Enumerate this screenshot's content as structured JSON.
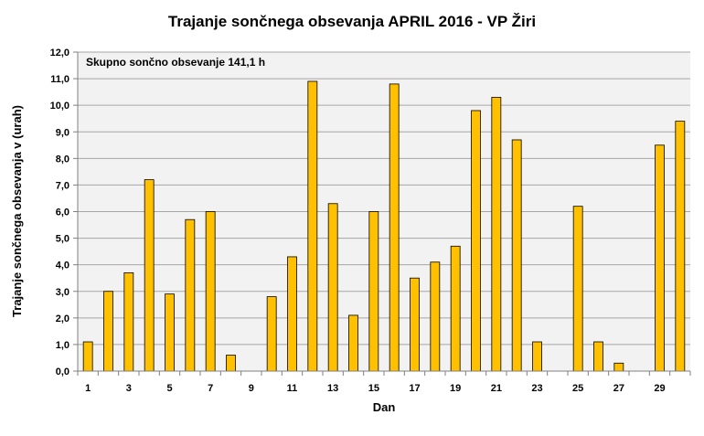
{
  "chart_data": {
    "type": "bar",
    "title": "Trajanje  sončnega obsevanja  APRIL 2016 - VP Žiri",
    "xlabel": "Dan",
    "ylabel": "Trajanje  sončnega obsevanja  v (urah)",
    "annotation": "Skupno sončno obsevanje  141,1 h",
    "ylim": [
      0,
      12
    ],
    "y_ticks": [
      "0,0",
      "1,0",
      "2,0",
      "3,0",
      "4,0",
      "5,0",
      "6,0",
      "7,0",
      "8,0",
      "9,0",
      "10,0",
      "11,0",
      "12,0"
    ],
    "x_tick_labels": [
      "1",
      "3",
      "5",
      "7",
      "9",
      "11",
      "13",
      "15",
      "17",
      "19",
      "21",
      "23",
      "25",
      "27",
      "29"
    ],
    "categories": [
      1,
      2,
      3,
      4,
      5,
      6,
      7,
      8,
      9,
      10,
      11,
      12,
      13,
      14,
      15,
      16,
      17,
      18,
      19,
      20,
      21,
      22,
      23,
      24,
      25,
      26,
      27,
      28,
      29,
      30
    ],
    "values": [
      1.1,
      3.0,
      3.7,
      7.2,
      2.9,
      5.7,
      6.0,
      0.6,
      0.0,
      2.8,
      4.3,
      10.9,
      6.3,
      2.1,
      6.0,
      10.8,
      3.5,
      4.1,
      4.7,
      9.8,
      10.3,
      8.7,
      1.1,
      0.0,
      6.2,
      1.1,
      0.3,
      0.0,
      8.5,
      9.4
    ],
    "grid": true,
    "legend": "none",
    "colors": {
      "bar_fill": "#FFC000",
      "bar_stroke": "#000000",
      "plot_bg": "#F2F2F2",
      "grid": "#A6A6A6"
    }
  }
}
